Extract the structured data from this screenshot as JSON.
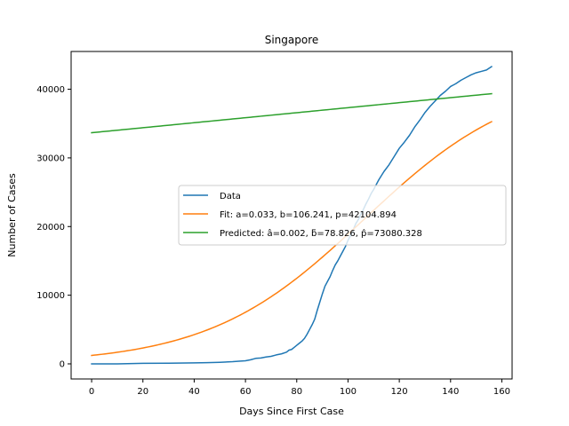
{
  "chart_data": {
    "type": "line",
    "title": "Singapore",
    "xlabel": "Days Since First Case",
    "ylabel": "Number of Cases",
    "xlim": [
      -8,
      164
    ],
    "ylim": [
      -2200,
      45500
    ],
    "xticks": [
      0,
      20,
      40,
      60,
      80,
      100,
      120,
      140,
      160
    ],
    "yticks": [
      0,
      10000,
      20000,
      30000,
      40000
    ],
    "grid": false,
    "legend_position": "center-right",
    "series": [
      {
        "name": "Data",
        "color": "#1f77b4",
        "x": [
          0,
          10,
          20,
          30,
          40,
          45,
          50,
          55,
          58,
          60,
          62,
          64,
          66,
          68,
          70,
          72,
          74,
          76,
          77,
          78,
          79,
          80,
          81,
          82,
          83,
          84,
          85,
          86,
          87,
          88,
          89,
          90,
          91,
          92,
          93,
          94,
          95,
          96,
          97,
          98,
          99,
          100,
          101,
          102,
          103,
          104,
          105,
          106,
          107,
          108,
          109,
          110,
          111,
          112,
          114,
          116,
          118,
          120,
          122,
          124,
          126,
          128,
          130,
          132,
          134,
          136,
          138,
          140,
          142,
          144,
          146,
          148,
          150,
          152,
          154,
          156
        ],
        "y": [
          0,
          0,
          80,
          100,
          150,
          180,
          230,
          320,
          400,
          450,
          600,
          800,
          850,
          1000,
          1100,
          1300,
          1450,
          1700,
          2000,
          2100,
          2400,
          2700,
          3000,
          3300,
          3700,
          4300,
          5000,
          5700,
          6500,
          7800,
          9000,
          10200,
          11300,
          12000,
          12700,
          13600,
          14400,
          15000,
          15700,
          16400,
          17100,
          18000,
          18700,
          19500,
          20400,
          21000,
          21800,
          22500,
          23300,
          24000,
          24800,
          25400,
          26100,
          26800,
          28000,
          29000,
          30200,
          31400,
          32300,
          33300,
          34500,
          35500,
          36600,
          37500,
          38300,
          39100,
          39700,
          40400,
          40800,
          41300,
          41700,
          42100,
          42400,
          42600,
          42800,
          43300
        ]
      },
      {
        "name": "Fit: a=0.033, b=106.241, p=42104.894",
        "color": "#ff7f0e",
        "function": "logistic",
        "params": {
          "a": 0.033,
          "b": 106.241,
          "p": 42104.894
        },
        "x_range": [
          0,
          156
        ]
      },
      {
        "name": "Predicted: â=0.002, ƃ=78.826, p̂=73080.328",
        "color": "#2ca02c",
        "function": "logistic",
        "params": {
          "a": 0.002,
          "b": 78.826,
          "p": 73080.328
        },
        "x_range": [
          0,
          156
        ]
      }
    ]
  }
}
